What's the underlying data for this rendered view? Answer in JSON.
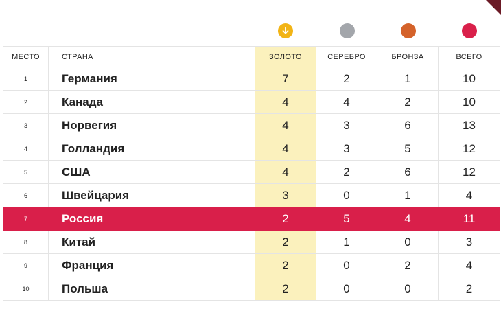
{
  "colors": {
    "gold": "#f2b415",
    "silver": "#a3a6ab",
    "bronze": "#d4622a",
    "total": "#d9204a",
    "highlight": "#d91f4a"
  },
  "icons": [
    "gold-medal-icon",
    "silver-medal-icon",
    "bronze-medal-icon",
    "total-medal-icon"
  ],
  "headers": {
    "place": "МЕСТО",
    "country": "СТРАНА",
    "gold": "ЗОЛОТО",
    "silver": "СЕРЕБРО",
    "bronze": "БРОНЗА",
    "total": "ВСЕГО"
  },
  "rows": [
    {
      "place": "1",
      "country": "Германия",
      "gold": "7",
      "silver": "2",
      "bronze": "1",
      "total": "10",
      "highlighted": false
    },
    {
      "place": "2",
      "country": "Канада",
      "gold": "4",
      "silver": "4",
      "bronze": "2",
      "total": "10",
      "highlighted": false
    },
    {
      "place": "3",
      "country": "Норвегия",
      "gold": "4",
      "silver": "3",
      "bronze": "6",
      "total": "13",
      "highlighted": false
    },
    {
      "place": "4",
      "country": "Голландия",
      "gold": "4",
      "silver": "3",
      "bronze": "5",
      "total": "12",
      "highlighted": false
    },
    {
      "place": "5",
      "country": "США",
      "gold": "4",
      "silver": "2",
      "bronze": "6",
      "total": "12",
      "highlighted": false
    },
    {
      "place": "6",
      "country": "Швейцария",
      "gold": "3",
      "silver": "0",
      "bronze": "1",
      "total": "4",
      "highlighted": false
    },
    {
      "place": "7",
      "country": "Россия",
      "gold": "2",
      "silver": "5",
      "bronze": "4",
      "total": "11",
      "highlighted": true
    },
    {
      "place": "8",
      "country": "Китай",
      "gold": "2",
      "silver": "1",
      "bronze": "0",
      "total": "3",
      "highlighted": false
    },
    {
      "place": "9",
      "country": "Франция",
      "gold": "2",
      "silver": "0",
      "bronze": "2",
      "total": "4",
      "highlighted": false
    },
    {
      "place": "10",
      "country": "Польша",
      "gold": "2",
      "silver": "0",
      "bronze": "0",
      "total": "2",
      "highlighted": false
    }
  ]
}
